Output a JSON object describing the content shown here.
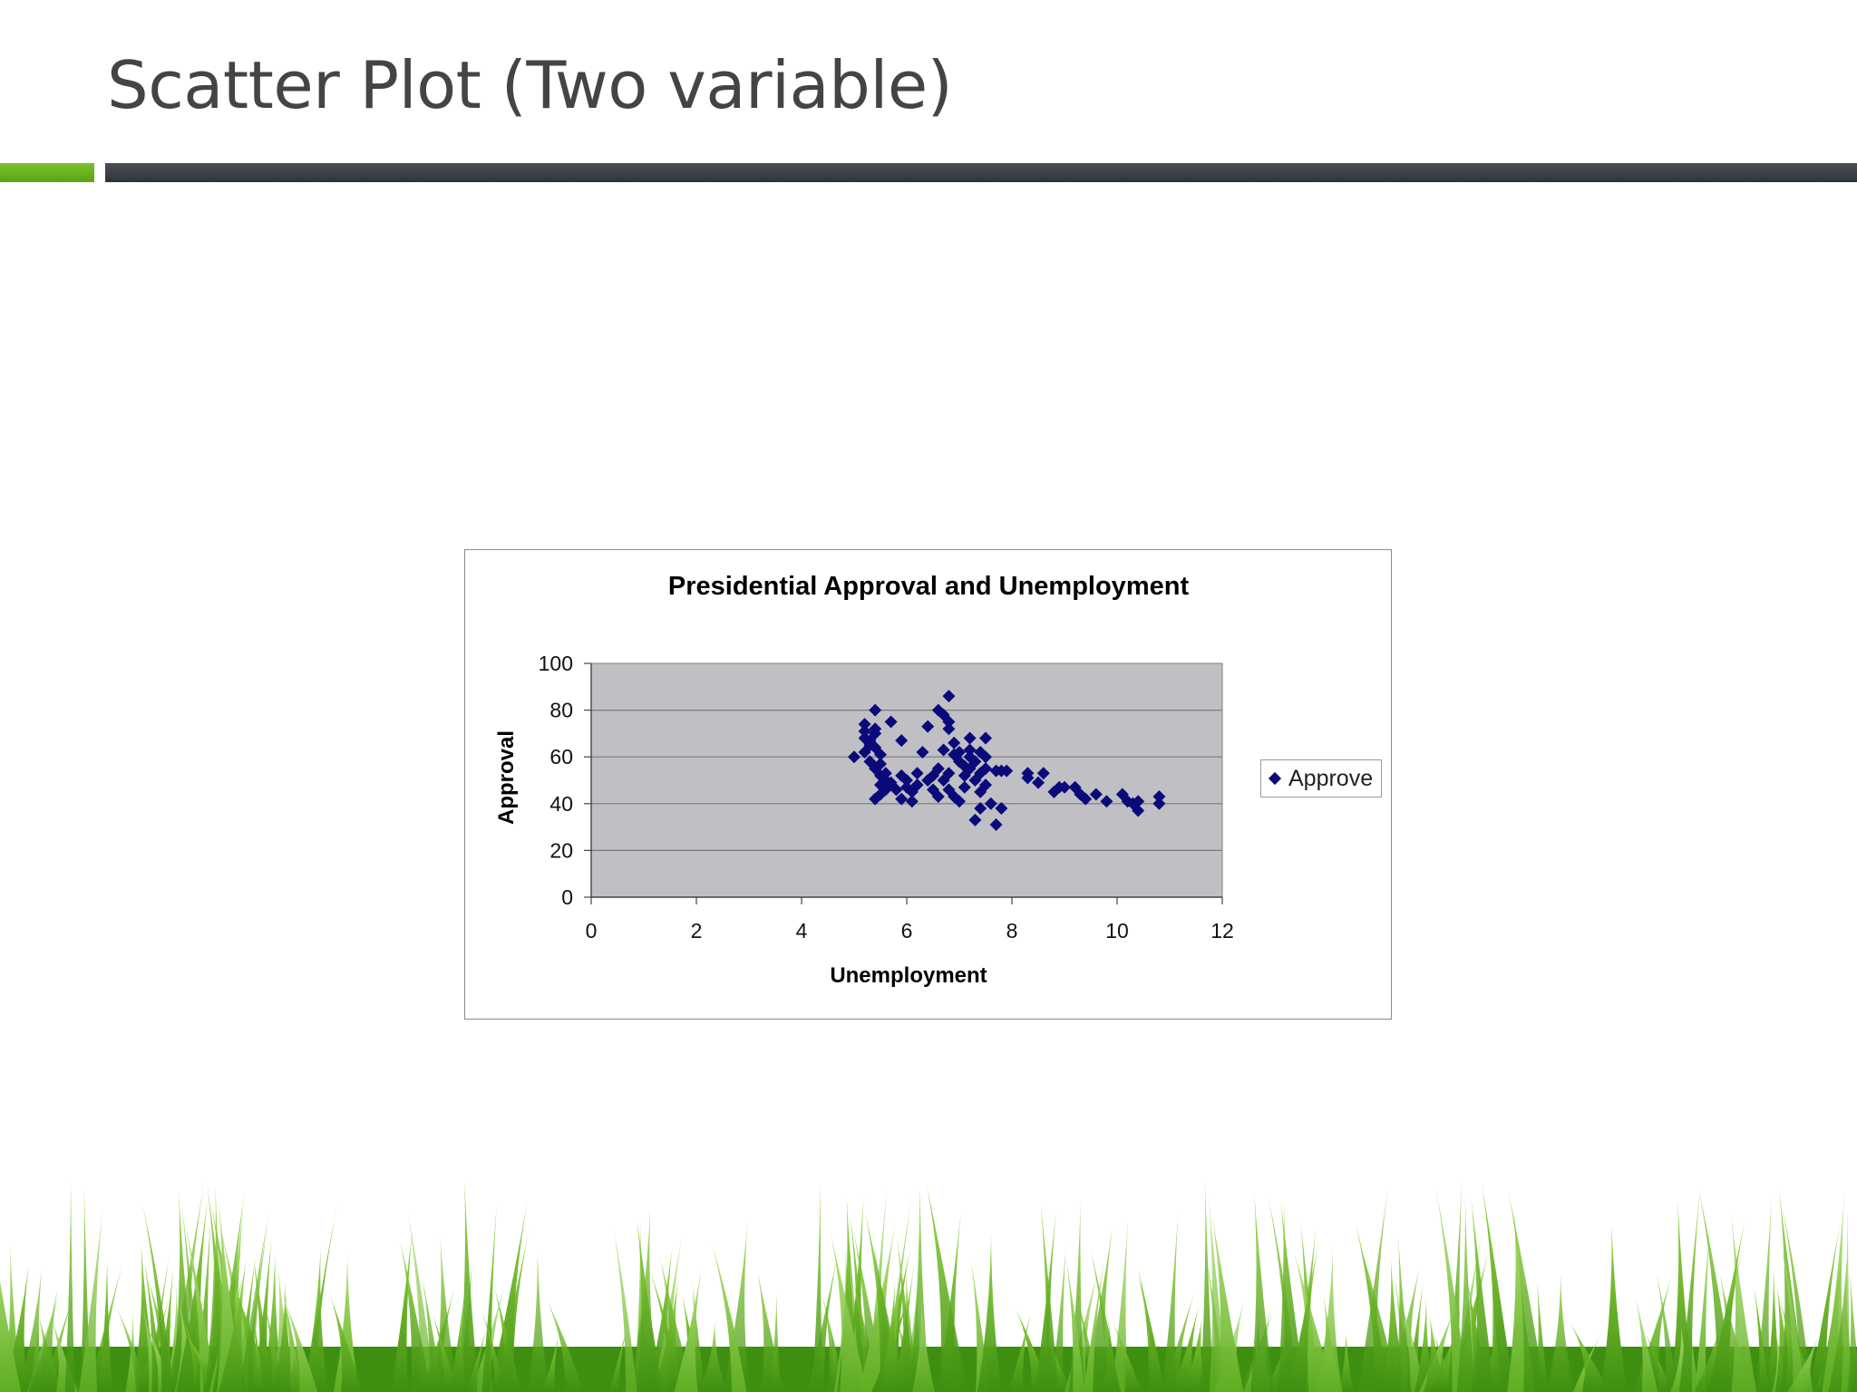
{
  "slide": {
    "title": "Scatter Plot (Two variable)"
  },
  "colors": {
    "accent_green": "#6ab41f",
    "accent_dark": "#3a4046",
    "plot_bg": "#c0c0c4",
    "marker": "#0a0a7a",
    "grass_dark": "#3e8f10",
    "grass_light": "#8fd13a"
  },
  "chart_data": {
    "type": "scatter",
    "title": "Presidential Approval and Unemployment",
    "xlabel": "Unemployment",
    "ylabel": "Approval",
    "xlim": [
      0,
      12
    ],
    "ylim": [
      0,
      100
    ],
    "xticks": [
      0,
      2,
      4,
      6,
      8,
      10,
      12
    ],
    "yticks": [
      0,
      20,
      40,
      60,
      80,
      100
    ],
    "grid": "horizontal",
    "legend_position": "right",
    "series": [
      {
        "name": "Approve",
        "marker": "diamond",
        "points": [
          [
            5.0,
            60
          ],
          [
            5.2,
            74
          ],
          [
            5.2,
            71
          ],
          [
            5.2,
            68
          ],
          [
            5.3,
            65
          ],
          [
            5.2,
            62
          ],
          [
            5.3,
            58
          ],
          [
            5.4,
            80
          ],
          [
            5.4,
            72
          ],
          [
            5.4,
            70
          ],
          [
            5.3,
            67
          ],
          [
            5.4,
            64
          ],
          [
            5.5,
            61
          ],
          [
            5.5,
            57
          ],
          [
            5.4,
            55
          ],
          [
            5.5,
            52
          ],
          [
            5.6,
            50
          ],
          [
            5.5,
            48
          ],
          [
            5.6,
            46
          ],
          [
            5.4,
            42
          ],
          [
            5.5,
            44
          ],
          [
            5.7,
            75
          ],
          [
            5.7,
            49
          ],
          [
            5.8,
            46
          ],
          [
            5.6,
            53
          ],
          [
            5.9,
            67
          ],
          [
            5.9,
            52
          ],
          [
            5.9,
            42
          ],
          [
            6.0,
            50
          ],
          [
            6.0,
            47
          ],
          [
            6.1,
            45
          ],
          [
            6.1,
            41
          ],
          [
            6.2,
            53
          ],
          [
            6.2,
            48
          ],
          [
            6.3,
            62
          ],
          [
            6.4,
            73
          ],
          [
            6.4,
            50
          ],
          [
            6.5,
            52
          ],
          [
            6.5,
            46
          ],
          [
            6.6,
            80
          ],
          [
            6.6,
            55
          ],
          [
            6.6,
            43
          ],
          [
            6.7,
            78
          ],
          [
            6.7,
            63
          ],
          [
            6.7,
            50
          ],
          [
            6.8,
            86
          ],
          [
            6.8,
            75
          ],
          [
            6.8,
            72
          ],
          [
            6.8,
            53
          ],
          [
            6.8,
            46
          ],
          [
            6.9,
            66
          ],
          [
            6.9,
            61
          ],
          [
            6.9,
            43
          ],
          [
            7.0,
            62
          ],
          [
            7.0,
            58
          ],
          [
            7.0,
            41
          ],
          [
            7.1,
            56
          ],
          [
            7.1,
            52
          ],
          [
            7.1,
            47
          ],
          [
            7.2,
            68
          ],
          [
            7.2,
            63
          ],
          [
            7.2,
            60
          ],
          [
            7.2,
            55
          ],
          [
            7.3,
            50
          ],
          [
            7.3,
            33
          ],
          [
            7.3,
            58
          ],
          [
            7.4,
            62
          ],
          [
            7.4,
            53
          ],
          [
            7.4,
            45
          ],
          [
            7.4,
            38
          ],
          [
            7.5,
            68
          ],
          [
            7.5,
            60
          ],
          [
            7.5,
            55
          ],
          [
            7.5,
            48
          ],
          [
            7.6,
            40
          ],
          [
            7.7,
            54
          ],
          [
            7.7,
            31
          ],
          [
            7.8,
            54
          ],
          [
            7.8,
            38
          ],
          [
            7.9,
            54
          ],
          [
            8.3,
            53
          ],
          [
            8.3,
            51
          ],
          [
            8.5,
            49
          ],
          [
            8.6,
            53
          ],
          [
            8.8,
            45
          ],
          [
            8.9,
            47
          ],
          [
            9.0,
            47
          ],
          [
            9.2,
            47
          ],
          [
            9.3,
            44
          ],
          [
            9.4,
            42
          ],
          [
            9.6,
            44
          ],
          [
            9.8,
            41
          ],
          [
            10.1,
            44
          ],
          [
            10.2,
            41
          ],
          [
            10.3,
            40
          ],
          [
            10.4,
            37
          ],
          [
            10.4,
            41
          ],
          [
            10.8,
            43
          ],
          [
            10.8,
            40
          ]
        ]
      }
    ]
  }
}
